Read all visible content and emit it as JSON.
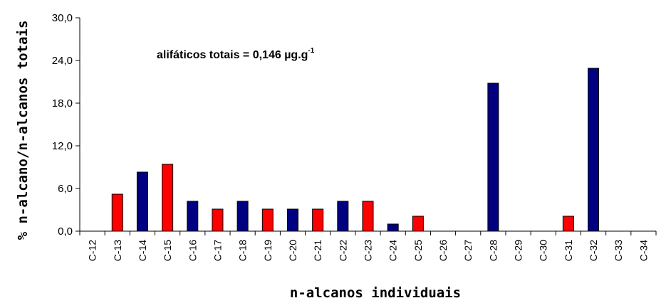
{
  "chart_data": {
    "type": "bar",
    "categories": [
      "C-12",
      "C-13",
      "C-14",
      "C-15",
      "C-16",
      "C-17",
      "C-18",
      "C-19",
      "C-20",
      "C-21",
      "C-22",
      "C-23",
      "C-24",
      "C-25",
      "C-26",
      "C-27",
      "C-28",
      "C-29",
      "C-30",
      "C-31",
      "C-32",
      "C-33",
      "C-34"
    ],
    "values": [
      0,
      5.2,
      8.3,
      9.4,
      4.2,
      3.1,
      4.2,
      3.1,
      3.1,
      3.1,
      4.2,
      4.2,
      1.0,
      2.1,
      0,
      0,
      20.8,
      0,
      0,
      2.1,
      22.9,
      0,
      0
    ],
    "bar_colors": [
      "#ff0000",
      "#ff0000",
      "#000080",
      "#ff0000",
      "#000080",
      "#ff0000",
      "#000080",
      "#ff0000",
      "#000080",
      "#ff0000",
      "#000080",
      "#ff0000",
      "#000080",
      "#ff0000",
      "#000080",
      "#ff0000",
      "#000080",
      "#ff0000",
      "#000080",
      "#ff0000",
      "#000080",
      "#ff0000",
      "#000080"
    ],
    "y_ticks": [
      "0,0",
      "6,0",
      "12,0",
      "18,0",
      "24,0",
      "30,0"
    ],
    "ylim": [
      0,
      30
    ],
    "xlabel": "n-alcanos individuais",
    "ylabel": "% n-alcano/n-alcanos totais",
    "annotation": {
      "text": "alifáticos totais = 0,146 µg.g",
      "superscript": "-1"
    },
    "grid": false,
    "legend": "none"
  }
}
